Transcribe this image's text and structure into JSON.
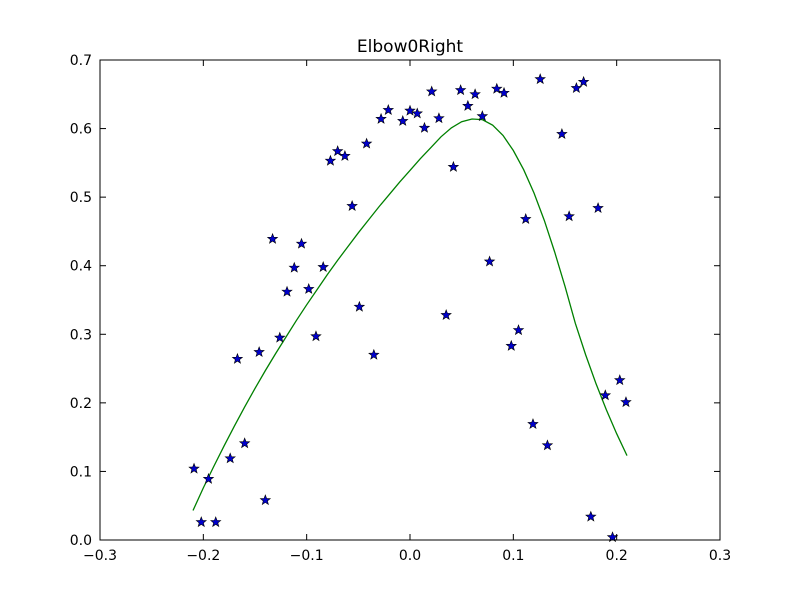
{
  "chart_data": {
    "type": "scatter",
    "title": "Elbow0Right",
    "xlabel": "",
    "ylabel": "",
    "xlim": [
      -0.3,
      0.3
    ],
    "ylim": [
      0.0,
      0.7
    ],
    "grid": false,
    "x_ticks": [
      "−0.3",
      "−0.2",
      "−0.1",
      "0.0",
      "0.1",
      "0.2",
      "0.3"
    ],
    "y_ticks": [
      "0.0",
      "0.1",
      "0.2",
      "0.3",
      "0.4",
      "0.5",
      "0.6",
      "0.7"
    ],
    "series": [
      {
        "kind": "scatter",
        "marker": "star",
        "color": "#0000cc",
        "points": [
          [
            -0.209,
            0.104
          ],
          [
            -0.202,
            0.026
          ],
          [
            -0.195,
            0.089
          ],
          [
            -0.188,
            0.026
          ],
          [
            -0.174,
            0.119
          ],
          [
            -0.167,
            0.264
          ],
          [
            -0.16,
            0.141
          ],
          [
            -0.146,
            0.274
          ],
          [
            -0.14,
            0.058
          ],
          [
            -0.133,
            0.439
          ],
          [
            -0.126,
            0.295
          ],
          [
            -0.119,
            0.362
          ],
          [
            -0.112,
            0.397
          ],
          [
            -0.105,
            0.432
          ],
          [
            -0.098,
            0.366
          ],
          [
            -0.091,
            0.297
          ],
          [
            -0.084,
            0.398
          ],
          [
            -0.077,
            0.553
          ],
          [
            -0.07,
            0.567
          ],
          [
            -0.063,
            0.56
          ],
          [
            -0.056,
            0.487
          ],
          [
            -0.049,
            0.34
          ],
          [
            -0.042,
            0.578
          ],
          [
            -0.035,
            0.27
          ],
          [
            -0.028,
            0.614
          ],
          [
            -0.021,
            0.627
          ],
          [
            -0.007,
            0.611
          ],
          [
            0.0,
            0.626
          ],
          [
            0.007,
            0.622
          ],
          [
            0.014,
            0.601
          ],
          [
            0.021,
            0.654
          ],
          [
            0.028,
            0.615
          ],
          [
            0.035,
            0.328
          ],
          [
            0.042,
            0.544
          ],
          [
            0.049,
            0.656
          ],
          [
            0.056,
            0.633
          ],
          [
            0.063,
            0.65
          ],
          [
            0.07,
            0.618
          ],
          [
            0.077,
            0.406
          ],
          [
            0.084,
            0.658
          ],
          [
            0.091,
            0.652
          ],
          [
            0.098,
            0.283
          ],
          [
            0.105,
            0.306
          ],
          [
            0.112,
            0.468
          ],
          [
            0.119,
            0.169
          ],
          [
            0.126,
            0.672
          ],
          [
            0.133,
            0.138
          ],
          [
            0.147,
            0.592
          ],
          [
            0.154,
            0.472
          ],
          [
            0.161,
            0.659
          ],
          [
            0.168,
            0.668
          ],
          [
            0.175,
            0.034
          ],
          [
            0.182,
            0.484
          ],
          [
            0.189,
            0.211
          ],
          [
            0.196,
            0.004
          ],
          [
            0.203,
            0.233
          ],
          [
            0.209,
            0.201
          ]
        ]
      },
      {
        "kind": "line",
        "color": "#008000",
        "points": [
          [
            -0.21,
            0.043
          ],
          [
            -0.2,
            0.076
          ],
          [
            -0.19,
            0.107
          ],
          [
            -0.18,
            0.137
          ],
          [
            -0.17,
            0.166
          ],
          [
            -0.16,
            0.194
          ],
          [
            -0.15,
            0.221
          ],
          [
            -0.14,
            0.247
          ],
          [
            -0.13,
            0.272
          ],
          [
            -0.12,
            0.296
          ],
          [
            -0.11,
            0.32
          ],
          [
            -0.1,
            0.343
          ],
          [
            -0.09,
            0.365
          ],
          [
            -0.08,
            0.387
          ],
          [
            -0.07,
            0.408
          ],
          [
            -0.06,
            0.428
          ],
          [
            -0.05,
            0.448
          ],
          [
            -0.04,
            0.467
          ],
          [
            -0.03,
            0.486
          ],
          [
            -0.02,
            0.504
          ],
          [
            -0.01,
            0.522
          ],
          [
            0.0,
            0.539
          ],
          [
            0.01,
            0.556
          ],
          [
            0.02,
            0.572
          ],
          [
            0.03,
            0.588
          ],
          [
            0.04,
            0.601
          ],
          [
            0.05,
            0.61
          ],
          [
            0.06,
            0.614
          ],
          [
            0.07,
            0.613
          ],
          [
            0.08,
            0.605
          ],
          [
            0.09,
            0.59
          ],
          [
            0.1,
            0.568
          ],
          [
            0.11,
            0.54
          ],
          [
            0.12,
            0.506
          ],
          [
            0.13,
            0.466
          ],
          [
            0.14,
            0.42
          ],
          [
            0.15,
            0.37
          ],
          [
            0.16,
            0.316
          ],
          [
            0.17,
            0.27
          ],
          [
            0.18,
            0.228
          ],
          [
            0.19,
            0.19
          ],
          [
            0.2,
            0.155
          ],
          [
            0.21,
            0.123
          ]
        ]
      }
    ]
  }
}
